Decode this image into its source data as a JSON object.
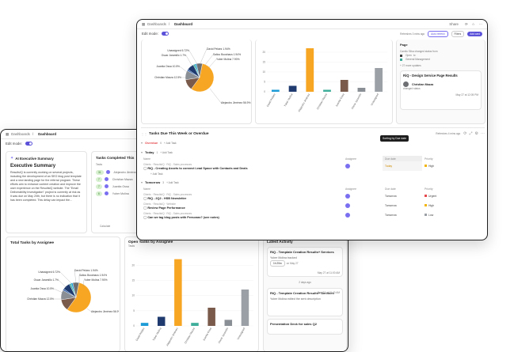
{
  "back": {
    "breadcrumb": {
      "root": "Dashboards",
      "current": "Dashboard"
    },
    "edit_mode": "Edit mode:",
    "summary_card": {
      "header": "AI Executive Summary",
      "title": "Executive Summary",
      "text": "ResultsIQ is currently working on several projects, including the development of an SEO blog post template and a new landing page for the referral program. These efforts aim to enhance content creation and improve the user experience on the ResultsIQ website. The \"Email Deliverability Investigation\" project is currently at risk as it was due on May 20th, but there is no indication that it has been completed. This delay can impact the..."
    },
    "tasks_completed": {
      "title": "Tasks Completed This",
      "col": "Tasks",
      "rows": [
        {
          "count": "31",
          "name": "Alejandro Jiménez"
        },
        {
          "count": "7",
          "name": "Christian Mazza"
        },
        {
          "count": "7",
          "name": "Juanita Ossa"
        },
        {
          "count": "6",
          "name": "Yuber Molina"
        }
      ],
      "footer": "Calculate"
    },
    "pie_card": {
      "title": "Total Tasks by Assignee",
      "labels": [
        {
          "text": "Unassigned 6.72%"
        },
        {
          "text": "David Peláez 1.94%"
        },
        {
          "text": "Saliou Boushaus 1.94%"
        },
        {
          "text": "Yuber Molina 7.90%"
        },
        {
          "text": "Oscar Jaramillo 1.7%"
        },
        {
          "text": "Juanita Ossa 10.5%"
        },
        {
          "text": "Christian Mazza 12.5%"
        },
        {
          "text": "Alejandro Jiménez 56.9%"
        }
      ]
    },
    "bar_card": {
      "title": "Open Tasks by Assignee",
      "ylabel": "Tasks",
      "categories": [
        "David Peláez",
        "Yuber Molina",
        "Alejandro Jiménez",
        "Christian Mazza",
        "Juanita Ossa",
        "Oscar Jaramillo",
        "Unassigned"
      ]
    },
    "activity": {
      "title": "Latest Activity",
      "items": [
        {
          "title": "RiQ - Template Creation Results+ Services",
          "who": "Yuber Molina tracked",
          "time": "1h 20m",
          "date": "on May 27",
          "stamp": "May 27 at 11:00 AM"
        },
        {
          "title": "RiQ - Template Creation Results+ Services",
          "who": "Yuber Molina edited the sent description",
          "stamp": "May 27 at 10:40 AM"
        },
        {
          "title": "Presentation Deck for sales Q2",
          "stamp": ""
        }
      ],
      "divider": "2 days ago"
    }
  },
  "front": {
    "breadcrumb": {
      "root": "Dashboards",
      "current": "Dashboard"
    },
    "topbar": {
      "share": "Share"
    },
    "edit_mode": "Edit mode:",
    "refresh": "Refreshes 3 mins ago",
    "autorefresh": "Auto refresh",
    "filters": "Filters",
    "add_card": "Add card",
    "pie_labels": [
      {
        "text": "Unassigned 6.72%"
      },
      {
        "text": "David Peláez 1.94%"
      },
      {
        "text": "Saliou Boushaus 1.94%"
      },
      {
        "text": "Yuber Molina 7.90%"
      },
      {
        "text": "Oscar Jaramillo 1.7%"
      },
      {
        "text": "Juanita Ossa 10.5%"
      },
      {
        "text": "Christian Mazza 12.5%"
      },
      {
        "text": "Alejandro Jiménez 56.9%"
      }
    ],
    "bar_categories": [
      "David Peláez",
      "Yuber Molina",
      "Alejandro Jiménez",
      "Christian Mazza",
      "Juanita Ossa",
      "Oscar Jaramillo",
      "Unassigned"
    ],
    "activity": {
      "top_title": "Page",
      "top_meta": "Camilo Silva changed status from",
      "status_open": "Open",
      "status_to": "to",
      "status_general": "General Management",
      "more": "+ 27 more updates",
      "item_title": "RiQ - Design Service Page Results",
      "item_who": "Christian Mazza",
      "item_line": "changed status",
      "item_date": "May 27 at 12:05 PM"
    },
    "tasks": {
      "title": "Tasks Due This Week or Overdue",
      "refresh": "Refreshes 4 mins ago",
      "tooltip": "Sorting by Due date",
      "overdue": "Overdue",
      "overdue_count": "0",
      "add_task": "+ Add Task",
      "today": "Today",
      "today_count": "1",
      "tomorrow": "Tomorrow",
      "tomorrow_count": "3",
      "cols": {
        "name": "Name",
        "assignee": "Assignee",
        "due": "Due date",
        "priority": "Priority"
      },
      "today_rows": [
        {
          "crumb": "Clients  ·  ResultsIQ  ·  RiQ - Sales processes",
          "name": "RiQ - Creating Assets to connect Lead Space with Contacts and Deals",
          "due": "Today",
          "priority": "High",
          "pcolor": "#f2b50f"
        }
      ],
      "tomorrow_rows": [
        {
          "crumb": "Clients  ·  ResultsIQ  ·  RiQ - Sales processes",
          "name": "RiQ - 2Q2 - HSB Newsletter",
          "due": "Tomorrow",
          "priority": "Urgent",
          "pcolor": "#e5484d"
        },
        {
          "crumb": "Clients  ·  ResultsIQ  ·  Website",
          "name": "Review Page Performance",
          "due": "Tomorrow",
          "priority": "High",
          "pcolor": "#f2b50f"
        },
        {
          "crumb": "Clients  ·  ResultsIQ  ·  RiQ - Sales processes",
          "name": "Can we tag blog posts with Personas? (see notes)",
          "due": "Tomorrow",
          "priority": "Low",
          "pcolor": "#9aa0a6"
        }
      ]
    }
  },
  "chart_data": [
    {
      "type": "pie",
      "title": "Total Tasks by Assignee",
      "categories": [
        "Alejandro Jiménez",
        "Christian Mazza",
        "Juanita Ossa",
        "Oscar Jaramillo",
        "Yuber Molina",
        "Saliou Boushaus",
        "David Peláez",
        "Unassigned"
      ],
      "values": [
        56.9,
        12.5,
        10.5,
        1.7,
        7.9,
        1.94,
        1.94,
        6.72
      ],
      "colors": [
        "#f6a623",
        "#7a5a4a",
        "#8a8f96",
        "#2b5ea8",
        "#1f3a6e",
        "#3fae9a",
        "#1d9bd6",
        "#6d6f73"
      ]
    },
    {
      "type": "bar",
      "title": "Open Tasks by Assignee",
      "ylabel": "Tasks",
      "categories": [
        "David Peláez",
        "Yuber Molina",
        "Alejandro Jiménez",
        "Christian Mazza",
        "Juanita Ossa",
        "Oscar Jaramillo",
        "Unassigned"
      ],
      "values": [
        1,
        3,
        22,
        1,
        6,
        2,
        12
      ],
      "colors": [
        "#1d9bd6",
        "#1f3a6e",
        "#f6a623",
        "#3fae9a",
        "#7a5a4a",
        "#8a8f96",
        "#9aa0a6"
      ]
    }
  ]
}
